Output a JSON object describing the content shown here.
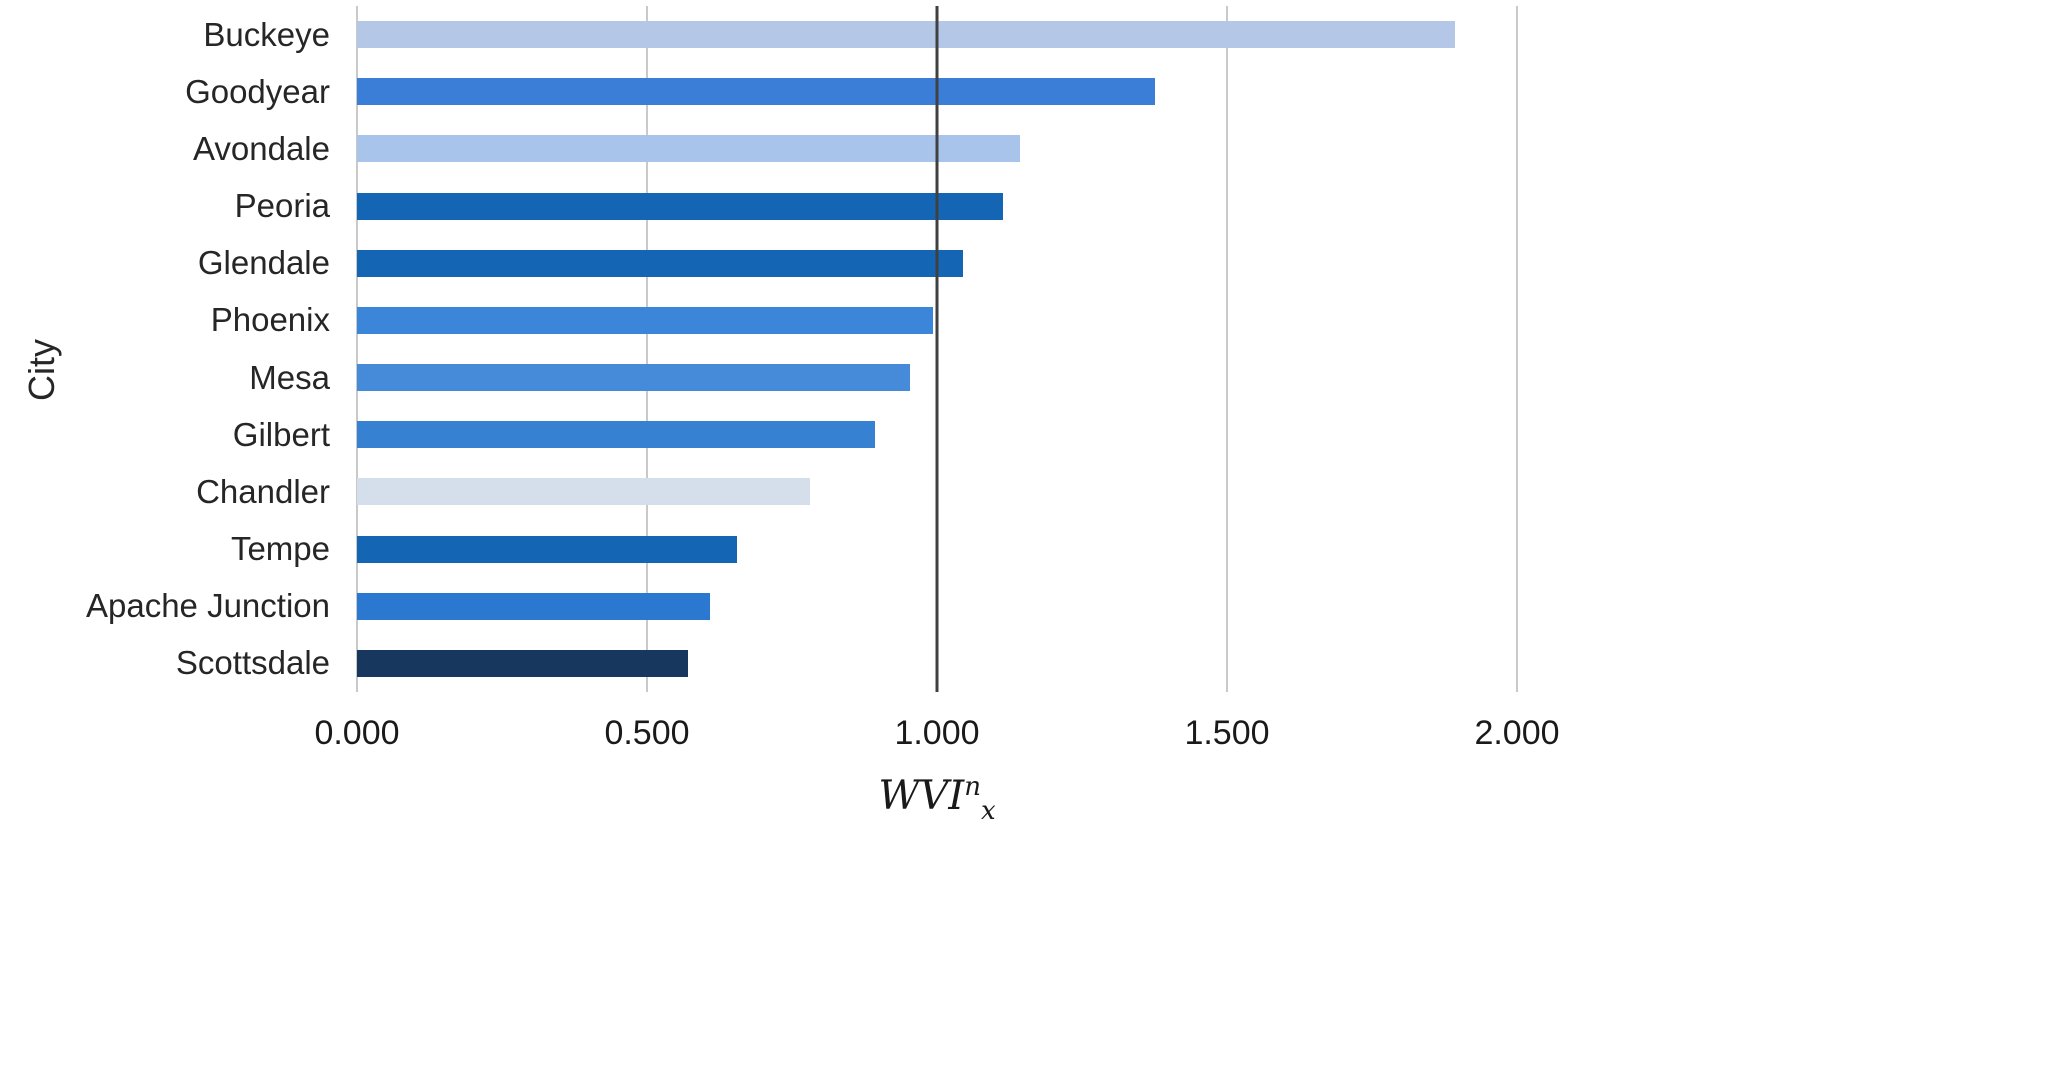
{
  "chart_data": {
    "type": "bar",
    "orientation": "horizontal",
    "title": "",
    "ylabel": "City",
    "xlabel_base": "WVI",
    "xlabel_sup": "n",
    "xlabel_sub": "x",
    "xlim": [
      0,
      2
    ],
    "grid": "vertical",
    "legend": "none",
    "x_ticks": [
      "0.000",
      "0.500",
      "1.000",
      "1.500",
      "2.000"
    ],
    "x_tick_values": [
      0,
      0.5,
      1.0,
      1.5,
      2.0
    ],
    "reference_line_x": 1.0,
    "categories": [
      "Buckeye",
      "Goodyear",
      "Avondale",
      "Peoria",
      "Glendale",
      "Phoenix",
      "Mesa",
      "Gilbert",
      "Chandler",
      "Tempe",
      "Apache Junction",
      "Scottsdale"
    ],
    "values": [
      1.893,
      1.376,
      1.143,
      1.114,
      1.045,
      0.993,
      0.953,
      0.893,
      0.781,
      0.655,
      0.609,
      0.571
    ],
    "bar_colors": [
      "#b4c7e7",
      "#3a7ed8",
      "#a9c4ea",
      "#1565b5",
      "#1565b5",
      "#3b86d8",
      "#468bd9",
      "#3781d3",
      "#d5dfec",
      "#1565b5",
      "#2a78cf",
      "#17375e"
    ],
    "colors": {
      "gridline": "#c9c9c9",
      "reference_line": "#404040",
      "text": "#262626",
      "background": "#ffffff"
    }
  }
}
